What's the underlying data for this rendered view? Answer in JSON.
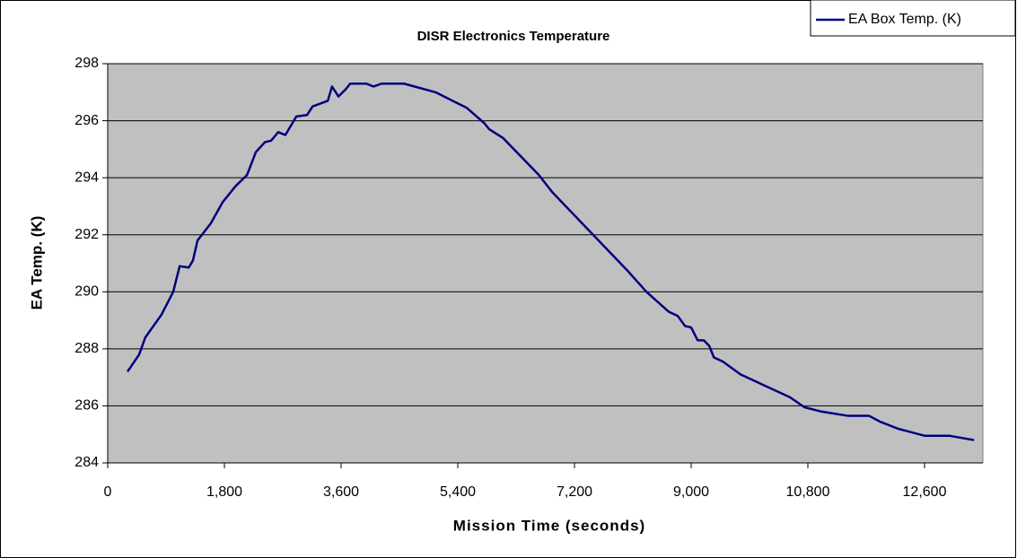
{
  "chart_data": {
    "type": "line",
    "title": "DISR Electronics Temperature",
    "x_label": "Mission Time (seconds)",
    "y_label": "EA Temp. (K)",
    "x": [
      305,
      485,
      580,
      830,
      1010,
      1110,
      1250,
      1315,
      1385,
      1590,
      1775,
      1970,
      2150,
      2285,
      2425,
      2520,
      2630,
      2740,
      2910,
      3075,
      3160,
      3395,
      3460,
      3560,
      3670,
      3740,
      3990,
      4100,
      4225,
      4570,
      5055,
      5540,
      5815,
      5885,
      6095,
      6650,
      6855,
      8035,
      8310,
      8655,
      8795,
      8905,
      9000,
      9100,
      9195,
      9280,
      9350,
      9490,
      9765,
      10525,
      10750,
      11010,
      11425,
      11745,
      11910,
      12190,
      12605,
      12990,
      13365
    ],
    "series": [
      {
        "name": "EA Box Temp. (K)",
        "color": "#000080",
        "values": [
          287.2,
          287.8,
          288.4,
          289.2,
          290.0,
          290.9,
          290.85,
          291.1,
          291.8,
          292.4,
          293.15,
          293.7,
          294.1,
          294.9,
          295.25,
          295.3,
          295.6,
          295.5,
          296.15,
          296.2,
          296.5,
          296.7,
          297.2,
          296.85,
          297.1,
          297.3,
          297.3,
          297.2,
          297.3,
          297.3,
          297.0,
          296.45,
          295.9,
          295.7,
          295.4,
          294.1,
          293.5,
          290.7,
          290.0,
          289.3,
          289.15,
          288.8,
          288.75,
          288.3,
          288.3,
          288.1,
          287.7,
          287.55,
          287.1,
          286.3,
          285.95,
          285.8,
          285.65,
          285.65,
          285.45,
          285.2,
          284.95,
          284.95,
          284.8
        ]
      }
    ],
    "xlim": [
      0,
      13500
    ],
    "xticks": [
      0,
      {
        "value": 1800,
        "label": "1,800"
      },
      {
        "value": 3600,
        "label": "3,600"
      },
      {
        "value": 5400,
        "label": "5,400"
      },
      {
        "value": 7200,
        "label": "7,200"
      },
      {
        "value": 9000,
        "label": "9,000"
      },
      {
        "value": 10800,
        "label": "10,800"
      },
      {
        "value": 12600,
        "label": "12,600"
      }
    ],
    "ylim": [
      284,
      298
    ],
    "yticks": [
      284,
      286,
      288,
      290,
      292,
      294,
      296,
      298
    ],
    "grid": true,
    "legend": "top-right"
  }
}
